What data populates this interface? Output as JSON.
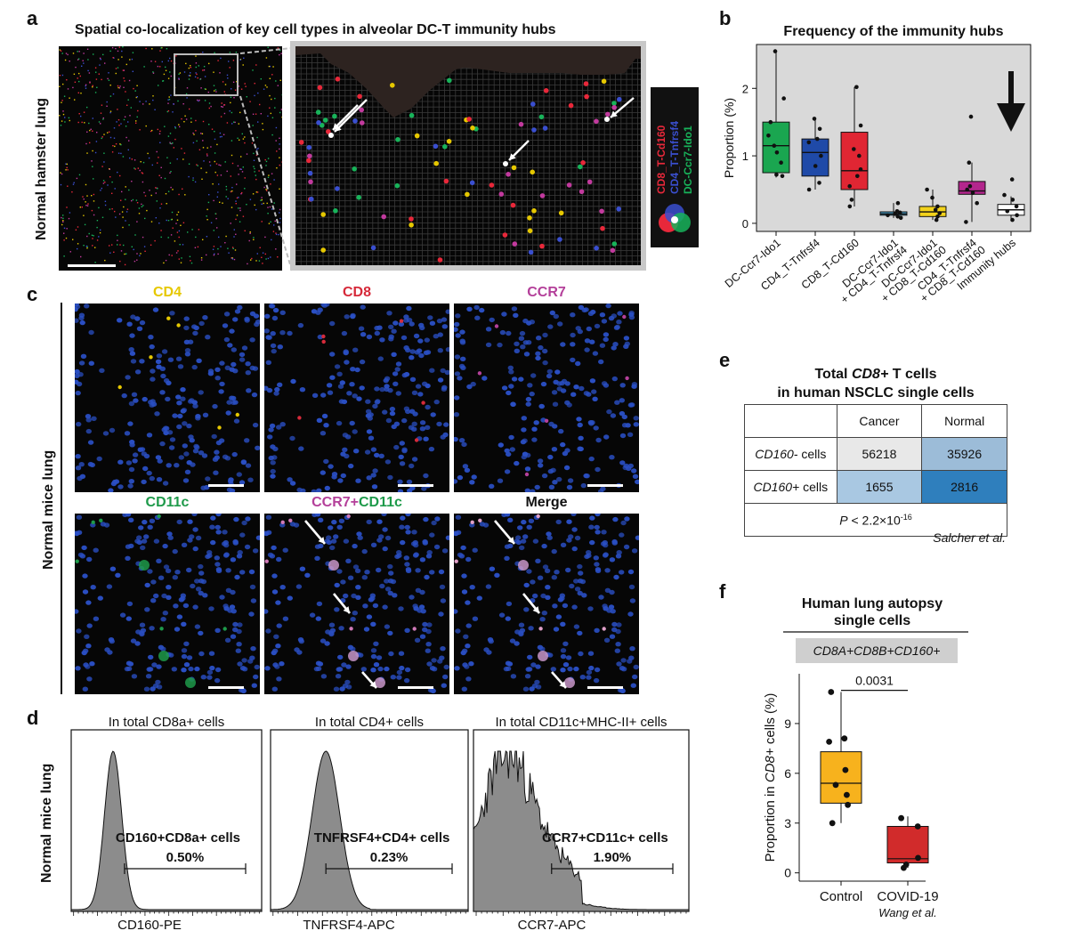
{
  "panels": {
    "a": "a",
    "b": "b",
    "c": "c",
    "d": "d",
    "e": "e",
    "f": "f"
  },
  "panel_a": {
    "title": "Spatial co-localization of key cell types in alveolar DC-T immunity hubs",
    "ylabel": "Normal hamster lung",
    "legend": [
      {
        "label": "CD8_T-Cd160",
        "color": "#e8283a"
      },
      {
        "label": "CD4_T-Tnfrsf4",
        "color": "#3a4fd0"
      },
      {
        "label": "DC-Ccr7-Ido1",
        "color": "#18b35a"
      }
    ]
  },
  "panel_c": {
    "ylabel": "Normal mice lung",
    "tiles": [
      {
        "label": "CD4",
        "color": "#e6c800"
      },
      {
        "label": "CD8",
        "color": "#d62a3a"
      },
      {
        "label": "CCR7",
        "color": "#b4409a"
      },
      {
        "label": "CD11c",
        "color": "#1e9a4a"
      },
      {
        "label_a": "CCR7",
        "plus": "+",
        "label_b": "CD11c",
        "color_a": "#b4409a",
        "color_b": "#1e9a4a"
      },
      {
        "label": "Merge",
        "color": "#111111"
      }
    ]
  },
  "panel_d": {
    "ylabel": "Normal mice lung",
    "plots": [
      {
        "title": "In total CD8a+ cells",
        "gate_label": "CD160+CD8a+ cells",
        "gate_value": "0.50%",
        "xlabel": "CD160-PE"
      },
      {
        "title": "In total CD4+ cells",
        "gate_label": "TNFRSF4+CD4+ cells",
        "gate_value": "0.23%",
        "xlabel": "TNFRSF4-APC"
      },
      {
        "title": "In total CD11c+MHC-II+ cells",
        "gate_label": "CCR7+CD11c+ cells",
        "gate_value": "1.90%",
        "xlabel": "CCR7-APC"
      }
    ]
  },
  "panel_e": {
    "title_1": "Total ",
    "title_gene": "CD8+",
    "title_2": " T cells",
    "title_line2": "in human NSCLC single cells",
    "col_headers": [
      "Cancer",
      "Normal"
    ],
    "rows": [
      {
        "gene": "CD160-",
        "suffix": " cells",
        "values": [
          "56218",
          "35926"
        ],
        "colors": [
          "#e8e8e8",
          "#9cbcd8"
        ]
      },
      {
        "gene": "CD160+",
        "suffix": " cells",
        "values": [
          "1655",
          "2816"
        ],
        "colors": [
          "#a9c8e2",
          "#2f7fbd"
        ]
      }
    ],
    "pvalue_p": "P",
    "pvalue_rest": " < 2.2×10",
    "pvalue_exp": "-16",
    "citation": "Salcher et al."
  },
  "chart_data": [
    {
      "panel": "b",
      "type": "box",
      "title": "Frequency of the immunity hubs",
      "ylabel": "Proportion (%)",
      "ylim": [
        -0.12,
        2.65
      ],
      "yticks": [
        0,
        1,
        2
      ],
      "grid": false,
      "background": "#d9d9d9",
      "annotation": "arrow pointing down at Immunity hubs",
      "categories": [
        {
          "label": "DC-Ccr7-Ido1",
          "label2": "",
          "color": "#1aa650",
          "q1": 0.75,
          "median": 1.15,
          "q3": 1.5,
          "wlo": 0.68,
          "whi": 2.55,
          "points": [
            0.7,
            0.72,
            0.9,
            1.05,
            1.15,
            1.3,
            1.5,
            1.85,
            2.55
          ]
        },
        {
          "label": "CD4_T-Tnfrsf4",
          "label2": "",
          "color": "#1f4aa8",
          "q1": 0.7,
          "median": 1.05,
          "q3": 1.25,
          "wlo": 0.5,
          "whi": 1.55,
          "points": [
            0.5,
            0.6,
            0.85,
            1.0,
            1.2,
            1.25,
            1.4,
            1.55
          ]
        },
        {
          "label": "CD8_T-Cd160",
          "label2": "",
          "color": "#e02633",
          "q1": 0.5,
          "median": 0.78,
          "q3": 1.35,
          "wlo": 0.25,
          "whi": 2.02,
          "points": [
            0.25,
            0.35,
            0.55,
            0.7,
            0.8,
            1.0,
            1.1,
            1.45,
            2.02
          ]
        },
        {
          "label": "DC-Ccr7-Ido1",
          "label2": "+ CD4_T-Tnfrsf4",
          "color": "#4aa8d6",
          "q1": 0.12,
          "median": 0.14,
          "q3": 0.17,
          "wlo": 0.08,
          "whi": 0.3,
          "points": [
            0.08,
            0.1,
            0.12,
            0.14,
            0.16,
            0.18,
            0.3
          ]
        },
        {
          "label": "DC-Ccr7-Ido1",
          "label2": "+ CD8_T-Cd160",
          "color": "#f2d21c",
          "q1": 0.1,
          "median": 0.17,
          "q3": 0.25,
          "wlo": 0.05,
          "whi": 0.5,
          "points": [
            0.05,
            0.1,
            0.15,
            0.2,
            0.25,
            0.38,
            0.5
          ]
        },
        {
          "label": "CD4_T-Tnfrsf4",
          "label2": "+ CD8_T-Cd160",
          "color": "#b3268d",
          "q1": 0.43,
          "median": 0.48,
          "q3": 0.62,
          "wlo": 0.02,
          "whi": 0.9,
          "points": [
            0.02,
            0.3,
            0.45,
            0.5,
            0.55,
            0.9,
            1.58
          ]
        },
        {
          "label": "Immunity hubs",
          "label2": "",
          "color": "#ffffff",
          "q1": 0.12,
          "median": 0.2,
          "q3": 0.28,
          "wlo": 0.05,
          "whi": 0.4,
          "points": [
            0.05,
            0.12,
            0.18,
            0.25,
            0.35,
            0.42,
            0.65
          ]
        }
      ]
    },
    {
      "panel": "f",
      "type": "box",
      "title_line1": "Human lung autopsy",
      "title_line2": "single cells",
      "group_label": "CD8A+CD8B+CD160+",
      "ylabel_pre": "Proportion in ",
      "ylabel_gene": "CD8+",
      "ylabel_post": " cells (%)",
      "ylim": [
        -0.5,
        12
      ],
      "yticks": [
        0,
        3,
        6,
        9
      ],
      "pvalue": "0.0031",
      "citation": "Wang et al.",
      "categories": [
        {
          "label": "Control",
          "color": "#f7b21d",
          "q1": 4.2,
          "median": 5.4,
          "q3": 7.3,
          "wlo": 3.0,
          "whi": 10.9,
          "points": [
            3.0,
            4.1,
            4.7,
            5.3,
            6.2,
            7.9,
            8.1,
            10.9
          ]
        },
        {
          "label": "COVID-19",
          "color": "#d12b2b",
          "q1": 0.6,
          "median": 0.85,
          "q3": 2.8,
          "wlo": 0.3,
          "whi": 3.4,
          "points": [
            0.3,
            0.5,
            0.9,
            2.8,
            3.3
          ]
        }
      ]
    }
  ]
}
